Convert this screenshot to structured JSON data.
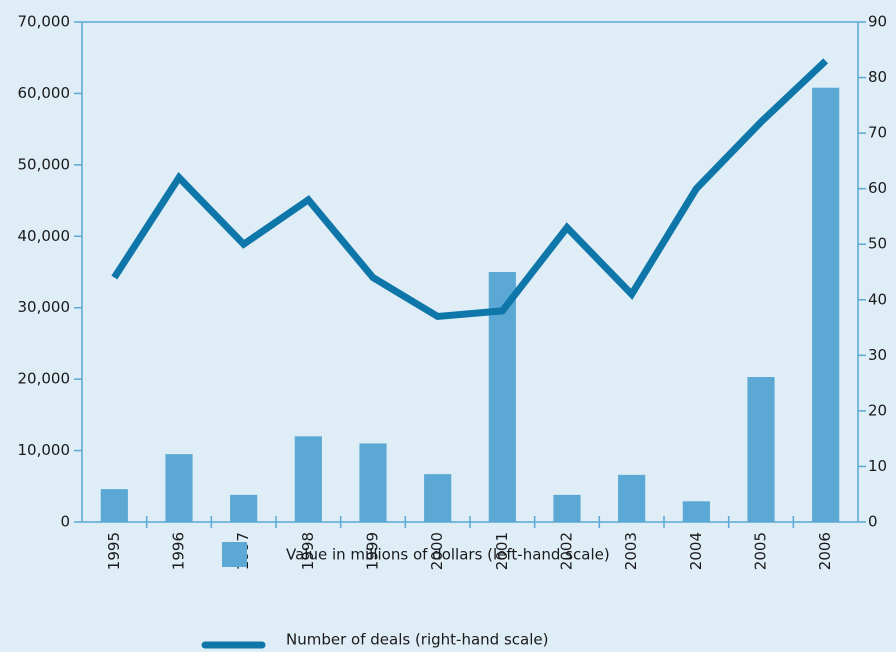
{
  "chart_data": {
    "type": "bar_line",
    "categories": [
      "1995",
      "1996",
      "1997",
      "1998",
      "1999",
      "2000",
      "2001",
      "2002",
      "2003",
      "2004",
      "2005",
      "2006"
    ],
    "series": [
      {
        "name": "Value in millions of dollars (left-hand scale)",
        "type": "bar",
        "color": "#5aa8d3",
        "values": [
          4600,
          9500,
          3800,
          12000,
          11000,
          6700,
          35000,
          3800,
          6600,
          2900,
          20300,
          60800
        ]
      },
      {
        "name": "Number of deals (right-hand scale)",
        "type": "line",
        "axis": "y2",
        "color": "#0f76aa",
        "values": [
          44,
          62,
          50,
          58,
          44,
          37,
          38,
          53,
          41,
          60,
          72,
          83
        ]
      }
    ],
    "ylim": [
      0,
      70000
    ],
    "yticks": [
      0,
      {
        "value": 10000,
        "label": "10,000"
      },
      {
        "value": 20000,
        "label": "20,000"
      },
      {
        "value": 30000,
        "label": "30,000"
      },
      {
        "value": 40000,
        "label": "40,000"
      },
      {
        "value": 50000,
        "label": "50,000"
      },
      {
        "value": 60000,
        "label": "60,000"
      },
      {
        "value": 70000,
        "label": "70,000"
      }
    ],
    "y2lim": [
      0,
      90
    ],
    "y2ticks": [
      0,
      10,
      20,
      30,
      40,
      50,
      60,
      70,
      80,
      90
    ]
  }
}
